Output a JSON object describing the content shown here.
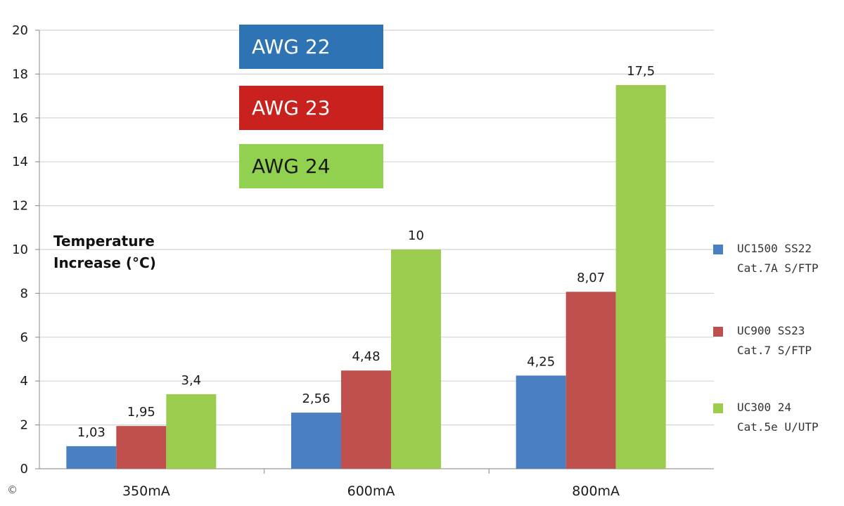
{
  "chart_data": {
    "type": "bar",
    "categories": [
      "350mA",
      "600mA",
      "800mA"
    ],
    "series": [
      {
        "name": "UC1500 SS22 Cat.7A S/FTP",
        "legend_lines": [
          "UC1500 SS22",
          "Cat.7A S/FTP"
        ],
        "color": "#4a7fc1",
        "values": [
          1.03,
          2.56,
          4.25
        ],
        "labels": [
          "1,03",
          "2,56",
          "4,25"
        ]
      },
      {
        "name": "UC900 SS23 Cat.7 S/FTP",
        "legend_lines": [
          "UC900 SS23",
          "Cat.7 S/FTP"
        ],
        "color": "#c0504d",
        "values": [
          1.95,
          4.48,
          8.07
        ],
        "labels": [
          "1,95",
          "4,48",
          "8,07"
        ]
      },
      {
        "name": "UC300 24 Cat.5e U/UTP",
        "legend_lines": [
          "UC300 24",
          "Cat.5e U/UTP"
        ],
        "color": "#9bcc4e",
        "values": [
          3.4,
          10,
          17.5
        ],
        "labels": [
          "3,4",
          "10",
          "17,5"
        ]
      }
    ],
    "ylabel_lines": [
      "Temperature",
      "Increase (°C)"
    ],
    "ylim": [
      0,
      20
    ],
    "yticks": [
      0,
      2,
      4,
      6,
      8,
      10,
      12,
      14,
      16,
      18,
      20
    ],
    "grid": true,
    "legend_position": "right"
  },
  "annotations": [
    {
      "id": "awg22",
      "text": "AWG 22",
      "color": "#2e74b5"
    },
    {
      "id": "awg23",
      "text": "AWG 23",
      "color": "#c9211e"
    },
    {
      "id": "awg24",
      "text": "AWG 24",
      "color": "#92d050"
    }
  ],
  "copyright": "©"
}
